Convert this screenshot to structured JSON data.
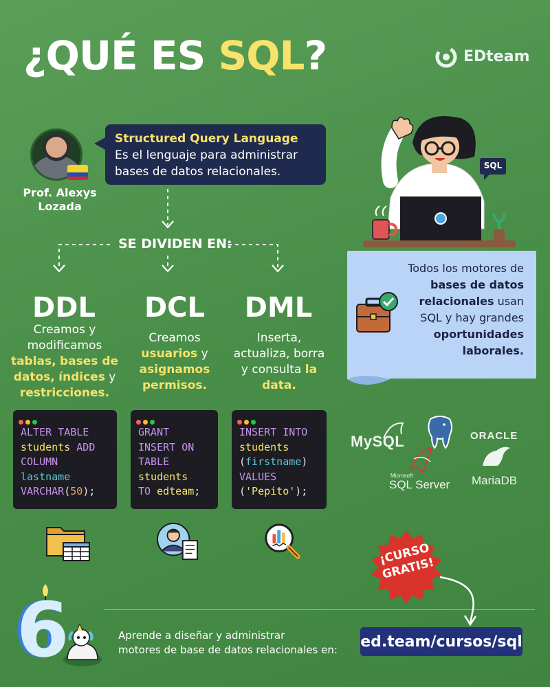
{
  "header": {
    "title_prefix": "¿QUÉ ES ",
    "title_highlight": "SQL",
    "title_suffix": "?",
    "logo_text": "EDteam"
  },
  "professor": {
    "name_line1": "Prof. Alexys",
    "name_line2": "Lozada"
  },
  "definition": {
    "title": "Structured Query Language",
    "line1": "Es el lenguaje para administrar",
    "line2": "bases de datos relacionales."
  },
  "divider_label": "SE DIVIDEN EN:",
  "columns": [
    {
      "name": "DDL",
      "desc": [
        {
          "t": "Creamos y",
          "b": false
        },
        {
          "t": "modificamos",
          "b": false
        }
      ],
      "desc_rich": [
        [
          {
            "t": "Creamos y",
            "b": false
          }
        ],
        [
          {
            "t": "modificamos",
            "b": false
          }
        ],
        [
          {
            "t": "tablas,",
            "b": true
          },
          {
            "t": " ",
            "b": false
          },
          {
            "t": "bases de",
            "b": true
          }
        ],
        [
          {
            "t": "datos,",
            "b": true
          },
          {
            "t": " ",
            "b": false
          },
          {
            "t": "índices",
            "b": true
          },
          {
            "t": " y",
            "b": false
          }
        ],
        [
          {
            "t": "restricciones.",
            "b": true
          }
        ]
      ],
      "code": [
        [
          {
            "t": "ALTER TABLE",
            "c": "kw"
          }
        ],
        [
          {
            "t": "students ",
            "c": "id"
          },
          {
            "t": "ADD",
            "c": "kw"
          }
        ],
        [
          {
            "t": "COLUMN",
            "c": "kw"
          }
        ],
        [
          {
            "t": "lastname",
            "c": "tl"
          }
        ],
        [
          {
            "t": "VARCHAR",
            "c": "kw"
          },
          {
            "t": "(",
            "c": "pl"
          },
          {
            "t": "50",
            "c": "nm"
          },
          {
            "t": ");",
            "c": "pl"
          }
        ]
      ]
    },
    {
      "name": "DCL",
      "desc_rich": [
        [
          {
            "t": "Creamos",
            "b": false
          }
        ],
        [
          {
            "t": "usuarios",
            "b": true
          },
          {
            "t": " y",
            "b": false
          }
        ],
        [
          {
            "t": "asignamos",
            "b": true
          }
        ],
        [
          {
            "t": "permisos.",
            "b": true
          }
        ]
      ],
      "code": [
        [
          {
            "t": "GRANT",
            "c": "kw"
          }
        ],
        [
          {
            "t": "INSERT ON",
            "c": "kw"
          }
        ],
        [
          {
            "t": "TABLE",
            "c": "kw"
          }
        ],
        [
          {
            "t": "students",
            "c": "id"
          }
        ],
        [
          {
            "t": "TO ",
            "c": "kw"
          },
          {
            "t": "edteam",
            "c": "id"
          },
          {
            "t": ";",
            "c": "pl"
          }
        ]
      ]
    },
    {
      "name": "DML",
      "desc_rich": [
        [
          {
            "t": "Inserta,",
            "b": false
          }
        ],
        [
          {
            "t": "actualiza, borra",
            "b": false
          }
        ],
        [
          {
            "t": "y consulta ",
            "b": false
          },
          {
            "t": "la",
            "b": true
          }
        ],
        [
          {
            "t": "data.",
            "b": true
          }
        ]
      ],
      "code": [
        [
          {
            "t": "INSERT INTO",
            "c": "kw"
          }
        ],
        [
          {
            "t": "students",
            "c": "id"
          }
        ],
        [
          {
            "t": "(",
            "c": "pl"
          },
          {
            "t": "firstname",
            "c": "tl"
          },
          {
            "t": ")",
            "c": "pl"
          }
        ],
        [
          {
            "t": "VALUES",
            "c": "kw"
          }
        ],
        [
          {
            "t": "(",
            "c": "pl"
          },
          {
            "t": "'Pepito'",
            "c": "st"
          },
          {
            "t": ");",
            "c": "pl"
          }
        ]
      ]
    }
  ],
  "info_card": [
    [
      {
        "t": "Todos los motores de",
        "b": false
      }
    ],
    [
      {
        "t": "bases de datos",
        "b": true
      }
    ],
    [
      {
        "t": "relacionales",
        "b": true
      },
      {
        "t": " usan",
        "b": false
      }
    ],
    [
      {
        "t": "SQL y hay grandes",
        "b": false
      }
    ],
    [
      {
        "t": "oportunidades",
        "b": true
      }
    ],
    [
      {
        "t": "laborales.",
        "b": true
      }
    ]
  ],
  "laptop_bubble": "SQL",
  "databases": {
    "mysql": "MySQL",
    "oracle": "ORACLE",
    "sqlserver_small": "Microsoft",
    "sqlserver": "SQL Server",
    "mariadb": "MariaDB"
  },
  "promo": {
    "badge_line1": "¡CURSO",
    "badge_line2": "GRATIS!",
    "text_line1": "Aprende a diseñar y administrar",
    "text_line2": "motores de base de datos relacionales en:",
    "url": "ed.team/cursos/sql",
    "anniversary": "6"
  },
  "colors": {
    "accent_yellow": "#f7e26b",
    "navy": "#1f2a4f",
    "url_button": "#23317a",
    "card_blue": "#b9d4f7"
  }
}
